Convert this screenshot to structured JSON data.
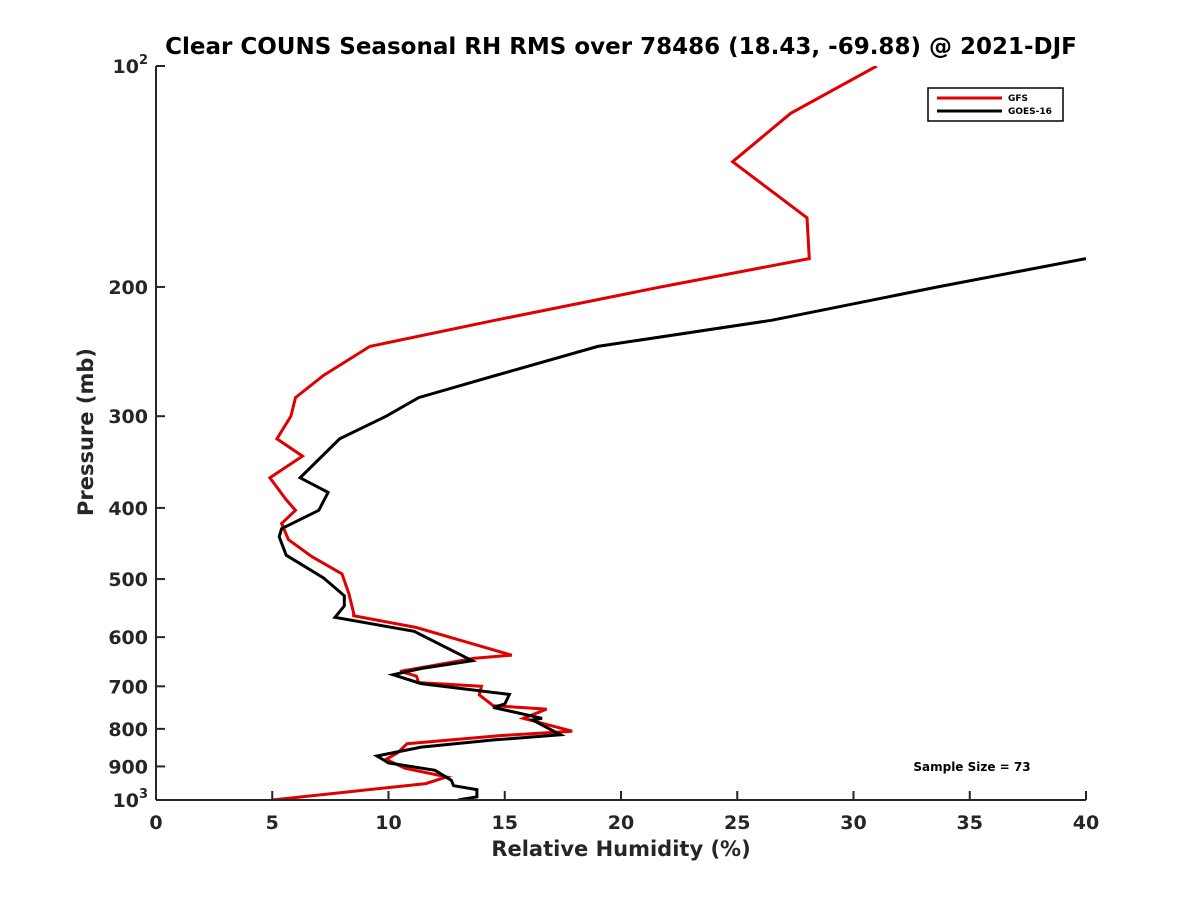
{
  "chart_data": {
    "type": "line",
    "title": "Clear COUNS Seasonal RH RMS over 78486 (18.43, -69.88) @ 2021-DJF",
    "xlabel": "Relative Humidity (%)",
    "ylabel": "Pressure (mb)",
    "xlim": [
      0,
      40
    ],
    "ylim": [
      100,
      1000
    ],
    "yscale": "log",
    "y_reversed": true,
    "x_ticks": [
      0,
      5,
      10,
      15,
      20,
      25,
      30,
      35,
      40
    ],
    "x_tick_labels": [
      "0",
      "5",
      "10",
      "15",
      "20",
      "25",
      "30",
      "35",
      "40"
    ],
    "y_ticks": [
      100,
      200,
      300,
      400,
      500,
      600,
      700,
      800,
      900,
      1000
    ],
    "y_tick_labels": [
      {
        "base": "10",
        "exp": "2"
      },
      {
        "base": "200",
        "exp": ""
      },
      {
        "base": "300",
        "exp": ""
      },
      {
        "base": "400",
        "exp": ""
      },
      {
        "base": "500",
        "exp": ""
      },
      {
        "base": "600",
        "exp": ""
      },
      {
        "base": "700",
        "exp": ""
      },
      {
        "base": "800",
        "exp": ""
      },
      {
        "base": "900",
        "exp": ""
      },
      {
        "base": "10",
        "exp": "3"
      }
    ],
    "grid": false,
    "legend_position": "top-right",
    "annotation": "Sample Size = 73",
    "series": [
      {
        "name": "GFS",
        "color": "#e00000",
        "points": [
          [
            31.0,
            100
          ],
          [
            27.3,
            116
          ],
          [
            24.8,
            135
          ],
          [
            28.0,
            161
          ],
          [
            28.1,
            183
          ],
          [
            21.7,
            200
          ],
          [
            14.6,
            222
          ],
          [
            9.2,
            241
          ],
          [
            7.2,
            264
          ],
          [
            6.0,
            283
          ],
          [
            5.8,
            300
          ],
          [
            5.2,
            322
          ],
          [
            6.3,
            340
          ],
          [
            4.9,
            364
          ],
          [
            5.6,
            390
          ],
          [
            6.0,
            403
          ],
          [
            5.4,
            420
          ],
          [
            5.7,
            442
          ],
          [
            6.7,
            466
          ],
          [
            8.0,
            492
          ],
          [
            8.3,
            524
          ],
          [
            8.5,
            556
          ],
          [
            8.5,
            561
          ],
          [
            11.2,
            582
          ],
          [
            15.3,
            635
          ],
          [
            13.7,
            641
          ],
          [
            10.5,
            668
          ],
          [
            11.2,
            678
          ],
          [
            11.3,
            692
          ],
          [
            14.0,
            700
          ],
          [
            13.9,
            719
          ],
          [
            14.5,
            744
          ],
          [
            16.8,
            752
          ],
          [
            15.8,
            774
          ],
          [
            17.9,
            806
          ],
          [
            14.8,
            817
          ],
          [
            10.8,
            838
          ],
          [
            10.4,
            862
          ],
          [
            9.9,
            880
          ],
          [
            10.7,
            905
          ],
          [
            12.5,
            930
          ],
          [
            11.6,
            950
          ],
          [
            5.0,
            1000
          ]
        ]
      },
      {
        "name": "GOES-16",
        "color": "#000000",
        "points": [
          [
            40.0,
            183
          ],
          [
            33.6,
            200
          ],
          [
            26.5,
            222
          ],
          [
            19.0,
            241
          ],
          [
            14.6,
            264
          ],
          [
            11.3,
            283
          ],
          [
            9.9,
            300
          ],
          [
            7.9,
            322
          ],
          [
            6.2,
            364
          ],
          [
            7.4,
            381
          ],
          [
            7.0,
            403
          ],
          [
            5.4,
            427
          ],
          [
            5.3,
            438
          ],
          [
            5.6,
            464
          ],
          [
            7.2,
            498
          ],
          [
            8.1,
            527
          ],
          [
            8.1,
            544
          ],
          [
            7.7,
            564
          ],
          [
            11.1,
            589
          ],
          [
            13.6,
            646
          ],
          [
            11.4,
            662
          ],
          [
            10.2,
            675
          ],
          [
            11.4,
            694
          ],
          [
            15.2,
            718
          ],
          [
            15.0,
            740
          ],
          [
            14.5,
            748
          ],
          [
            16.6,
            774
          ],
          [
            16.2,
            778
          ],
          [
            17.4,
            815
          ],
          [
            14.6,
            828
          ],
          [
            11.4,
            847
          ],
          [
            9.5,
            871
          ],
          [
            10.0,
            890
          ],
          [
            12.0,
            911
          ],
          [
            12.7,
            940
          ],
          [
            12.8,
            956
          ],
          [
            13.8,
            968
          ],
          [
            13.8,
            990
          ],
          [
            13.0,
            1000
          ]
        ]
      }
    ]
  }
}
